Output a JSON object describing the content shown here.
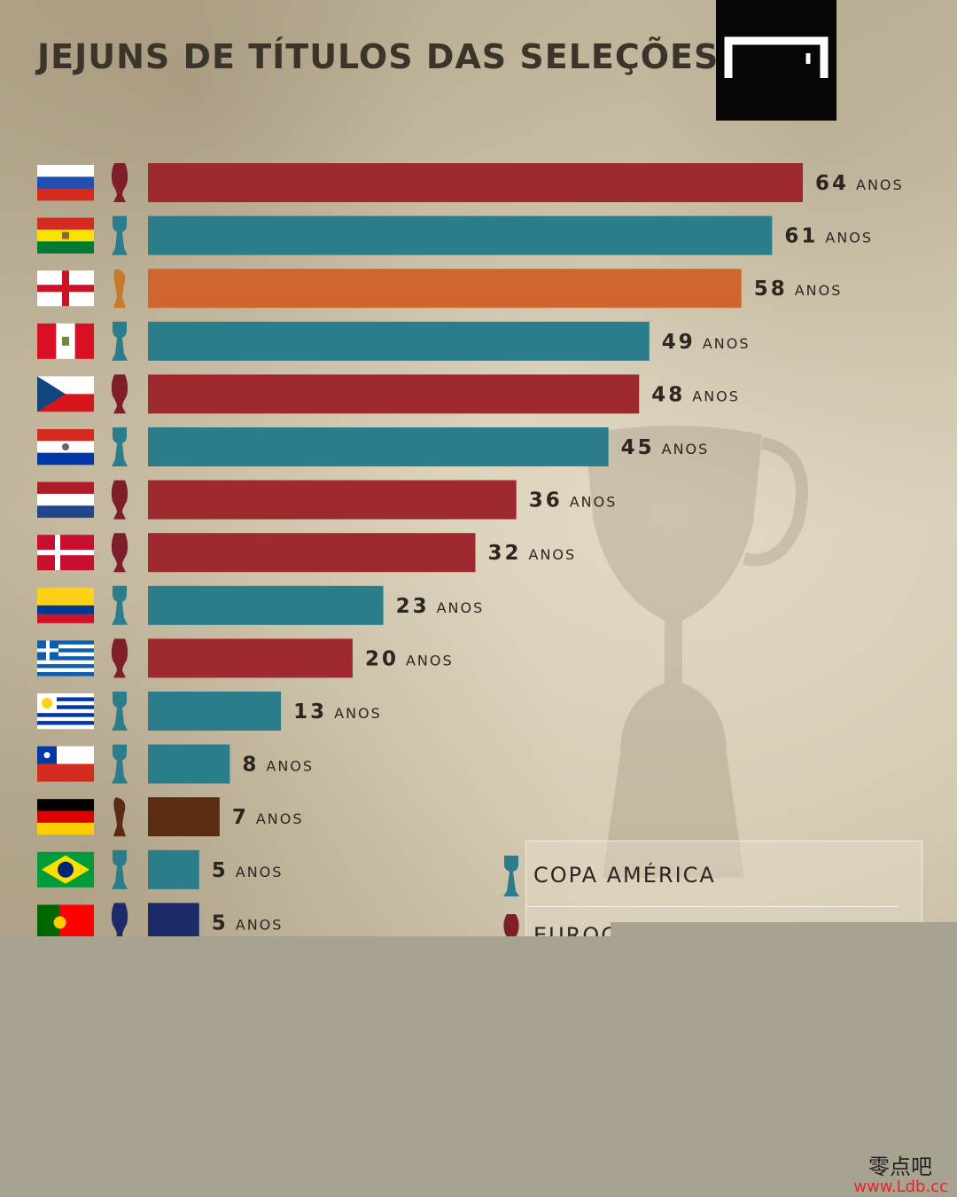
{
  "title": "JEJUNS DE TÍTULOS DAS SELEÇÕES",
  "unit": "ANOS",
  "legend": {
    "copa_label": "COPA AMÉRICA",
    "euro_label_partial": "EUROC"
  },
  "watermark": {
    "cn": "零点吧",
    "url": "www.Ldb.cc"
  },
  "colors": {
    "euro": "#9e2a30",
    "copa": "#2b7d8c",
    "world_cup_england": "#d0662e",
    "world_cup_germany": "#5a2c14",
    "euro_portugal": "#1c2a6a"
  },
  "chart_data": {
    "type": "bar",
    "orientation": "horizontal",
    "title": "JEJUNS DE TÍTULOS DAS SELEÇÕES",
    "unit": "ANOS",
    "xlim": [
      0,
      64
    ],
    "categories": [
      "russia-flag",
      "bolivia-flag",
      "england-flag",
      "peru-flag",
      "czech-flag",
      "paraguay-flag",
      "netherlands-flag",
      "denmark-flag",
      "colombia-flag",
      "greece-flag",
      "uruguay-flag",
      "chile-flag",
      "germany-flag",
      "brazil-flag",
      "portugal-flag"
    ],
    "values": [
      64,
      61,
      58,
      49,
      48,
      45,
      36,
      32,
      23,
      20,
      13,
      8,
      7,
      5,
      5
    ],
    "trophy": [
      "euro",
      "copa",
      "world-cup",
      "copa",
      "euro",
      "copa",
      "euro",
      "euro",
      "copa",
      "euro",
      "copa",
      "copa",
      "world-cup",
      "copa",
      "euro"
    ],
    "bar_colors": [
      "#9e2a30",
      "#2b7d8c",
      "#d0662e",
      "#2b7d8c",
      "#9e2a30",
      "#2b7d8c",
      "#9e2a30",
      "#9e2a30",
      "#2b7d8c",
      "#9e2a30",
      "#2b7d8c",
      "#2b7d8c",
      "#5a2c14",
      "#2b7d8c",
      "#1c2a6a"
    ],
    "icon_colors": [
      "#7d1e2a",
      "#2b7d8c",
      "#c77a2c",
      "#2b7d8c",
      "#7d1e2a",
      "#2b7d8c",
      "#7d1e2a",
      "#7d1e2a",
      "#2b7d8c",
      "#7d1e2a",
      "#2b7d8c",
      "#2b7d8c",
      "#5a2c14",
      "#2b7d8c",
      "#1c2a6a"
    ]
  }
}
